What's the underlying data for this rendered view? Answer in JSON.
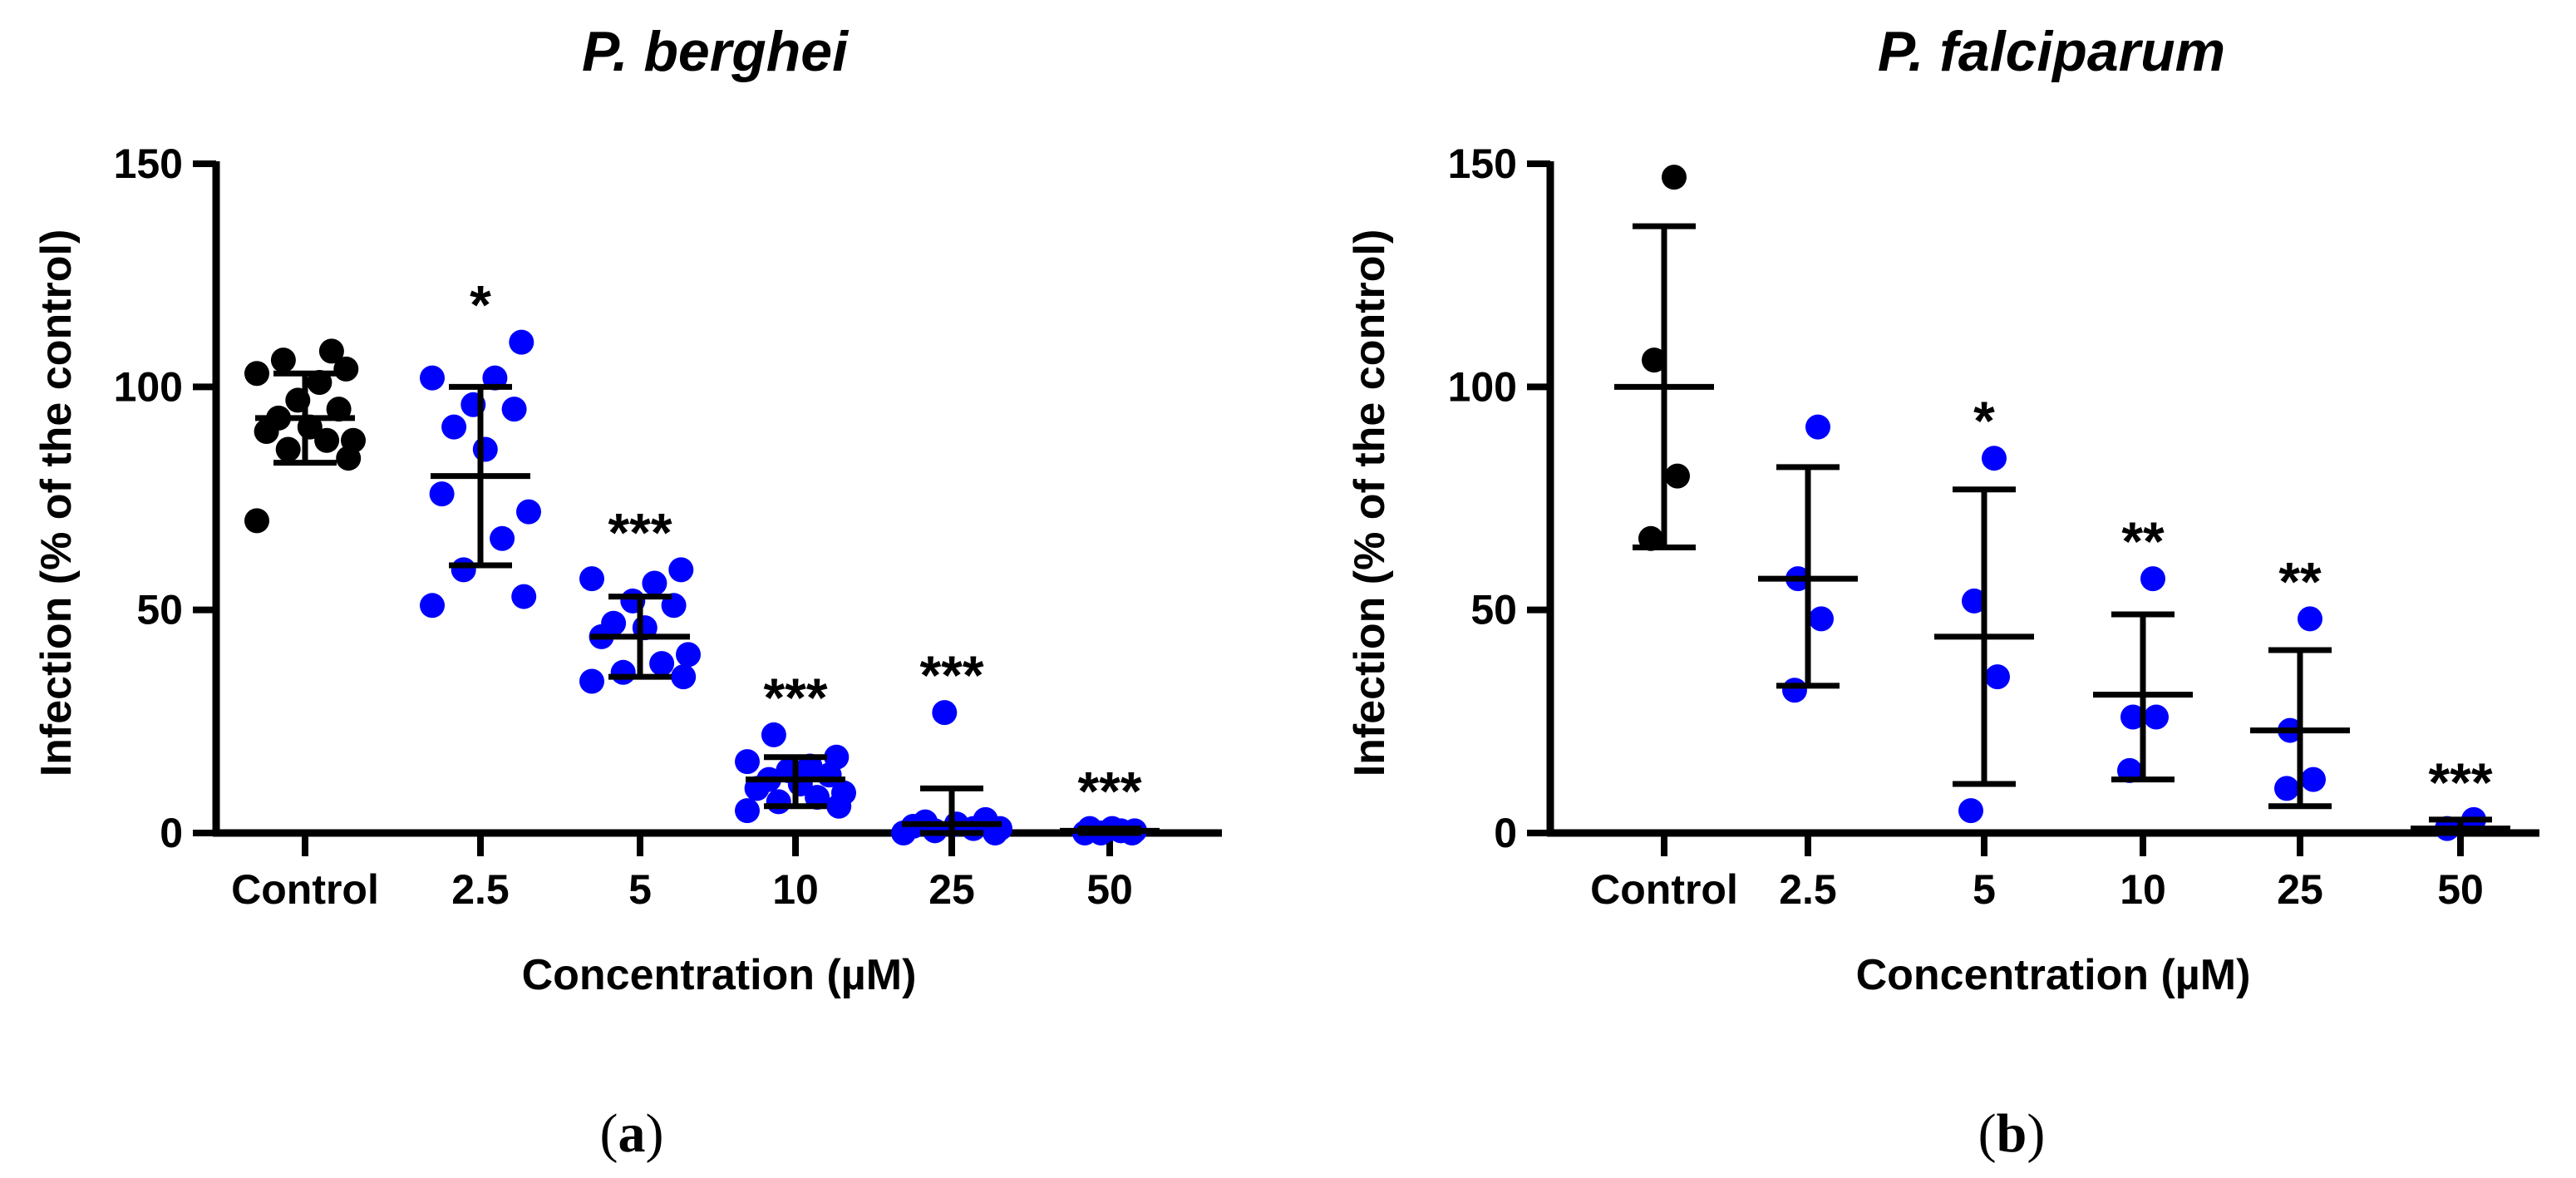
{
  "figure": {
    "panels": [
      {
        "letter_open": "(",
        "letter": "a",
        "letter_close": ")"
      },
      {
        "letter_open": "(",
        "letter": "b",
        "letter_close": ")"
      }
    ]
  },
  "colors": {
    "control": "#000000",
    "treated": "#0000ff",
    "axis": "#000000"
  },
  "chart_data": [
    {
      "type": "scatter",
      "title": "P. berghei",
      "xlabel": "Concentration (µM)",
      "ylabel": "Infection (% of the control)",
      "ylim": [
        0,
        150
      ],
      "yticks": [
        0,
        50,
        100,
        150
      ],
      "categories": [
        "Control",
        "2.5",
        "5",
        "10",
        "25",
        "50"
      ],
      "groups": [
        {
          "label": "Control",
          "color": "control",
          "mean": 93,
          "sd_low": 83,
          "sd_high": 103,
          "significance": "",
          "points": [
            70,
            84,
            86,
            88,
            88,
            90,
            91,
            93,
            95,
            97,
            101,
            103,
            104,
            106,
            108
          ]
        },
        {
          "label": "2.5",
          "color": "treated",
          "mean": 80,
          "sd_low": 60,
          "sd_high": 100,
          "significance": "*",
          "points": [
            51,
            53,
            59,
            66,
            72,
            76,
            86,
            91,
            95,
            96,
            102,
            102,
            110
          ]
        },
        {
          "label": "5",
          "color": "treated",
          "mean": 44,
          "sd_low": 35,
          "sd_high": 53,
          "significance": "***",
          "points": [
            34,
            35,
            36,
            38,
            40,
            44,
            46,
            47,
            51,
            52,
            56,
            57,
            59
          ]
        },
        {
          "label": "10",
          "color": "treated",
          "mean": 12,
          "sd_low": 6,
          "sd_high": 17,
          "significance": "***",
          "points": [
            5,
            6,
            7,
            8,
            9,
            10,
            11,
            12,
            13,
            14,
            15,
            16,
            17,
            22
          ]
        },
        {
          "label": "25",
          "color": "treated",
          "mean": 2,
          "sd_low": 0,
          "sd_high": 10,
          "significance": "***",
          "points": [
            0,
            0,
            0.5,
            1,
            1,
            1.5,
            2,
            2.5,
            3,
            27
          ]
        },
        {
          "label": "50",
          "color": "treated",
          "mean": 0.5,
          "sd_low": 0,
          "sd_high": 1,
          "significance": "***",
          "points": [
            0,
            0,
            0,
            0.5,
            0.5,
            1,
            1
          ]
        }
      ]
    },
    {
      "type": "scatter",
      "title": "P. falciparum",
      "xlabel": "Concentration (µM)",
      "ylabel": "Infection (% of the control)",
      "ylim": [
        0,
        150
      ],
      "yticks": [
        0,
        50,
        100,
        150
      ],
      "categories": [
        "Control",
        "2.5",
        "5",
        "10",
        "25",
        "50"
      ],
      "groups": [
        {
          "label": "Control",
          "color": "control",
          "mean": 100,
          "sd_low": 64,
          "sd_high": 136,
          "significance": "",
          "points": [
            66,
            80,
            106,
            147
          ]
        },
        {
          "label": "2.5",
          "color": "treated",
          "mean": 57,
          "sd_low": 33,
          "sd_high": 82,
          "significance": "",
          "points": [
            32,
            48,
            57,
            91
          ]
        },
        {
          "label": "5",
          "color": "treated",
          "mean": 44,
          "sd_low": 11,
          "sd_high": 77,
          "significance": "*",
          "points": [
            5,
            35,
            52,
            84
          ]
        },
        {
          "label": "10",
          "color": "treated",
          "mean": 31,
          "sd_low": 12,
          "sd_high": 49,
          "significance": "**",
          "points": [
            14,
            26,
            26,
            57
          ]
        },
        {
          "label": "25",
          "color": "treated",
          "mean": 23,
          "sd_low": 6,
          "sd_high": 41,
          "significance": "**",
          "points": [
            10,
            12,
            23,
            48
          ]
        },
        {
          "label": "50",
          "color": "treated",
          "mean": 1,
          "sd_low": 0,
          "sd_high": 3,
          "significance": "***",
          "points": [
            1,
            3
          ]
        }
      ]
    }
  ]
}
